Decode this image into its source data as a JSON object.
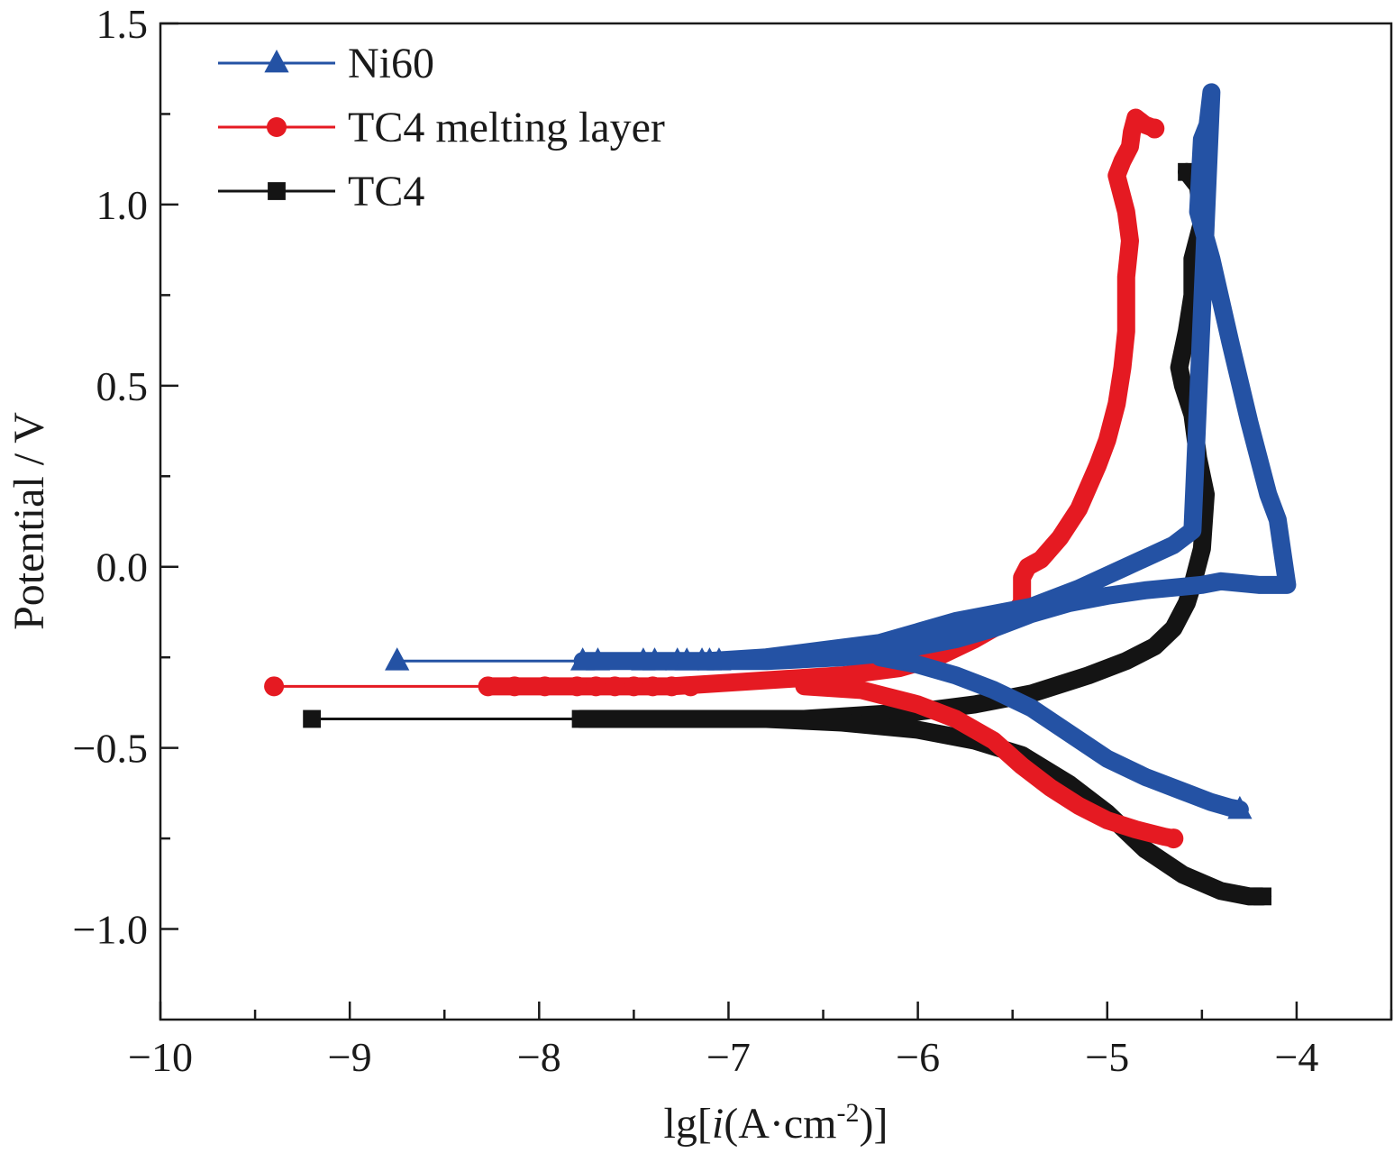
{
  "chart_data": {
    "type": "line",
    "title": "",
    "xlabel_prefix": "lg[",
    "xlabel_italic": "i",
    "xlabel_middle": "(A·cm",
    "xlabel_sup": "-2",
    "xlabel_suffix": ")]",
    "ylabel": "Potential / V",
    "xlim": [
      -10,
      -3.5
    ],
    "ylim": [
      -1.25,
      1.5
    ],
    "x_ticks": [
      -10,
      -9,
      -8,
      -7,
      -6,
      -5,
      -4
    ],
    "x_tick_labels": [
      "−10",
      "−9",
      "−8",
      "−7",
      "−6",
      "−5",
      "−4"
    ],
    "x_minor_ticks": [
      -9.5,
      -8.5,
      -7.5,
      -6.5,
      -5.5,
      -4.5,
      -3.5
    ],
    "y_ticks": [
      1.5,
      1.0,
      0.5,
      0.0,
      -0.5,
      -1.0
    ],
    "y_tick_labels": [
      "1.5",
      "1.0",
      "0.5",
      "0.0",
      "−0.5",
      "−1.0"
    ],
    "y_minor_ticks": [
      1.25,
      0.75,
      0.25,
      -0.25,
      -0.75
    ],
    "legend_position": "top-left",
    "series": [
      {
        "name": "Ni60",
        "color": "#2452a4",
        "marker": "triangle",
        "marker_x": [
          -8.75,
          -7.77,
          -7.69,
          -7.45,
          -7.39,
          -7.27,
          -7.22,
          -7.14,
          -7.05
        ],
        "marker_y": [
          -0.26,
          -0.26,
          -0.26,
          -0.26,
          -0.26,
          -0.26,
          -0.26,
          -0.26,
          -0.26
        ],
        "x": [
          -8.75,
          -7.77,
          -7.45,
          -7.2,
          -7.0,
          -6.8,
          -6.6,
          -6.4,
          -6.2,
          -6.0,
          -5.8,
          -5.6,
          -5.4,
          -5.2,
          -5.0,
          -4.8,
          -4.6,
          -4.5,
          -4.4,
          -4.2,
          -4.05,
          -4.1,
          -4.15,
          -4.2,
          -4.25,
          -4.35,
          -4.45,
          -4.52,
          -4.5,
          -4.47,
          -4.45,
          -4.55,
          -4.65,
          -4.9,
          -5.15,
          -5.4,
          -5.6,
          -5.8,
          -6.0,
          -6.2,
          -6.5,
          -6.8,
          -7.1
        ],
        "y": [
          -0.26,
          -0.26,
          -0.26,
          -0.26,
          -0.26,
          -0.26,
          -0.255,
          -0.25,
          -0.24,
          -0.22,
          -0.2,
          -0.17,
          -0.13,
          -0.1,
          -0.08,
          -0.065,
          -0.055,
          -0.05,
          -0.04,
          -0.05,
          -0.05,
          0.13,
          0.2,
          0.3,
          0.4,
          0.62,
          0.85,
          0.98,
          1.18,
          1.22,
          1.31,
          0.1,
          0.06,
          0.0,
          -0.06,
          -0.11,
          -0.13,
          -0.15,
          -0.18,
          -0.21,
          -0.23,
          -0.25,
          -0.26
        ],
        "x2": [
          -6.2,
          -6.0,
          -5.8,
          -5.6,
          -5.4,
          -5.2,
          -5.0,
          -4.8,
          -4.6,
          -4.45,
          -4.35,
          -4.3
        ],
        "y2": [
          -0.25,
          -0.27,
          -0.3,
          -0.34,
          -0.39,
          -0.46,
          -0.53,
          -0.58,
          -0.62,
          -0.65,
          -0.665,
          -0.67
        ]
      },
      {
        "name": "TC4 melting layer",
        "color": "#e51a22",
        "marker": "circle",
        "marker_x": [
          -9.4,
          -8.27,
          -8.13,
          -7.97,
          -7.8,
          -7.7,
          -7.6,
          -7.5,
          -7.4,
          -7.3,
          -7.2
        ],
        "marker_y": [
          -0.33,
          -0.33,
          -0.33,
          -0.33,
          -0.33,
          -0.33,
          -0.33,
          -0.33,
          -0.33,
          -0.33,
          -0.33
        ],
        "x": [
          -9.4,
          -8.27,
          -7.9,
          -7.6,
          -7.3,
          -7.0,
          -6.7,
          -6.4,
          -6.1,
          -5.9,
          -5.7,
          -5.6,
          -5.5,
          -5.45,
          -5.45,
          -5.42,
          -5.35,
          -5.25,
          -5.15,
          -5.05,
          -5.0,
          -4.95,
          -4.92,
          -4.9,
          -4.9,
          -4.88,
          -4.9,
          -4.95,
          -4.92,
          -4.88,
          -4.87,
          -4.85,
          -4.8,
          -4.75
        ],
        "y": [
          -0.33,
          -0.33,
          -0.33,
          -0.33,
          -0.33,
          -0.32,
          -0.31,
          -0.3,
          -0.28,
          -0.25,
          -0.2,
          -0.17,
          -0.13,
          -0.1,
          -0.03,
          0.0,
          0.02,
          0.08,
          0.16,
          0.28,
          0.35,
          0.45,
          0.55,
          0.65,
          0.8,
          0.9,
          0.98,
          1.08,
          1.12,
          1.16,
          1.2,
          1.24,
          1.22,
          1.21
        ],
        "x2": [
          -6.6,
          -6.3,
          -6.0,
          -5.8,
          -5.6,
          -5.45,
          -5.3,
          -5.15,
          -5.0,
          -4.85,
          -4.7,
          -4.65
        ],
        "y2": [
          -0.33,
          -0.34,
          -0.38,
          -0.42,
          -0.48,
          -0.55,
          -0.61,
          -0.66,
          -0.7,
          -0.725,
          -0.745,
          -0.75
        ]
      },
      {
        "name": "TC4",
        "color": "#141414",
        "marker": "square",
        "marker_x": [
          -9.2,
          -7.78,
          -7.55,
          -7.45,
          -7.3,
          -7.2,
          -7.15,
          -7.0,
          -6.95
        ],
        "marker_y": [
          -0.42,
          -0.42,
          -0.42,
          -0.42,
          -0.42,
          -0.42,
          -0.42,
          -0.42,
          -0.42
        ],
        "x": [
          -9.2,
          -7.78,
          -7.5,
          -7.2,
          -6.9,
          -6.6,
          -6.3,
          -6.0,
          -5.7,
          -5.4,
          -5.1,
          -4.9,
          -4.75,
          -4.65,
          -4.58,
          -4.55,
          -4.5,
          -4.48,
          -4.52,
          -4.55,
          -4.6,
          -4.62,
          -4.58,
          -4.55,
          -4.55,
          -4.5,
          -4.52,
          -4.58
        ],
        "y": [
          -0.42,
          -0.42,
          -0.42,
          -0.42,
          -0.42,
          -0.42,
          -0.41,
          -0.4,
          -0.38,
          -0.35,
          -0.3,
          -0.26,
          -0.22,
          -0.17,
          -0.1,
          -0.05,
          0.05,
          0.2,
          0.3,
          0.42,
          0.5,
          0.55,
          0.65,
          0.75,
          0.85,
          0.95,
          1.05,
          1.09
        ],
        "x2": [
          -6.8,
          -6.4,
          -6.0,
          -5.7,
          -5.45,
          -5.2,
          -5.0,
          -4.8,
          -4.6,
          -4.4,
          -4.25,
          -4.18
        ],
        "y2": [
          -0.42,
          -0.43,
          -0.45,
          -0.48,
          -0.52,
          -0.6,
          -0.68,
          -0.78,
          -0.85,
          -0.895,
          -0.91,
          -0.91
        ]
      }
    ]
  }
}
